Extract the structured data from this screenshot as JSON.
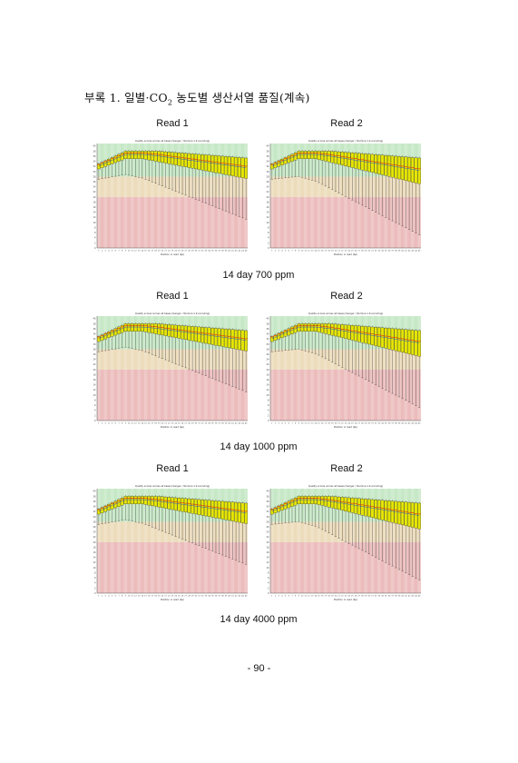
{
  "heading": {
    "prefix": "부록 1. 일별·CO",
    "sub": "2",
    "suffix": " 농도별 생산서열 품질(계속)"
  },
  "colors": {
    "good": "#c6e8c6",
    "medium": "#ecdcbb",
    "poor": "#ecbcbc",
    "box": "#e6e600",
    "median": "#ee0000",
    "mean": "#2a4ad0"
  },
  "panels": [
    {
      "caption": "14  day  700  ppm",
      "plots": [
        {
          "read": "Read 1",
          "title": "Quality scores across all bases (Sanger / Illumina 1.9 encoding)",
          "xlabel": "Position in read (bp)"
        },
        {
          "read": "Read 2",
          "title": "Quality scores across all bases (Sanger / Illumina 1.9 encoding)",
          "xlabel": "Position in read (bp)"
        }
      ]
    },
    {
      "caption": "14  day  1000  ppm",
      "plots": [
        {
          "read": "Read 1",
          "title": "Quality scores across all bases (Sanger / Illumina 1.9 encoding)",
          "xlabel": "Position in read (bp)"
        },
        {
          "read": "Read 2",
          "title": "Quality scores across all bases (Sanger / Illumina 1.9 encoding)",
          "xlabel": "Position in read (bp)"
        }
      ]
    },
    {
      "caption": "14  day  4000  ppm",
      "plots": [
        {
          "read": "Read 1",
          "title": "Quality scores across all bases (Sanger / Illumina 1.9 encoding)",
          "xlabel": "Position in read (bp)"
        },
        {
          "read": "Read 2",
          "title": "Quality scores across all bases (Sanger / Illumina 1.9 encoding)",
          "xlabel": "Position in read (bp)"
        }
      ]
    }
  ],
  "page_number": "- 90 -"
}
